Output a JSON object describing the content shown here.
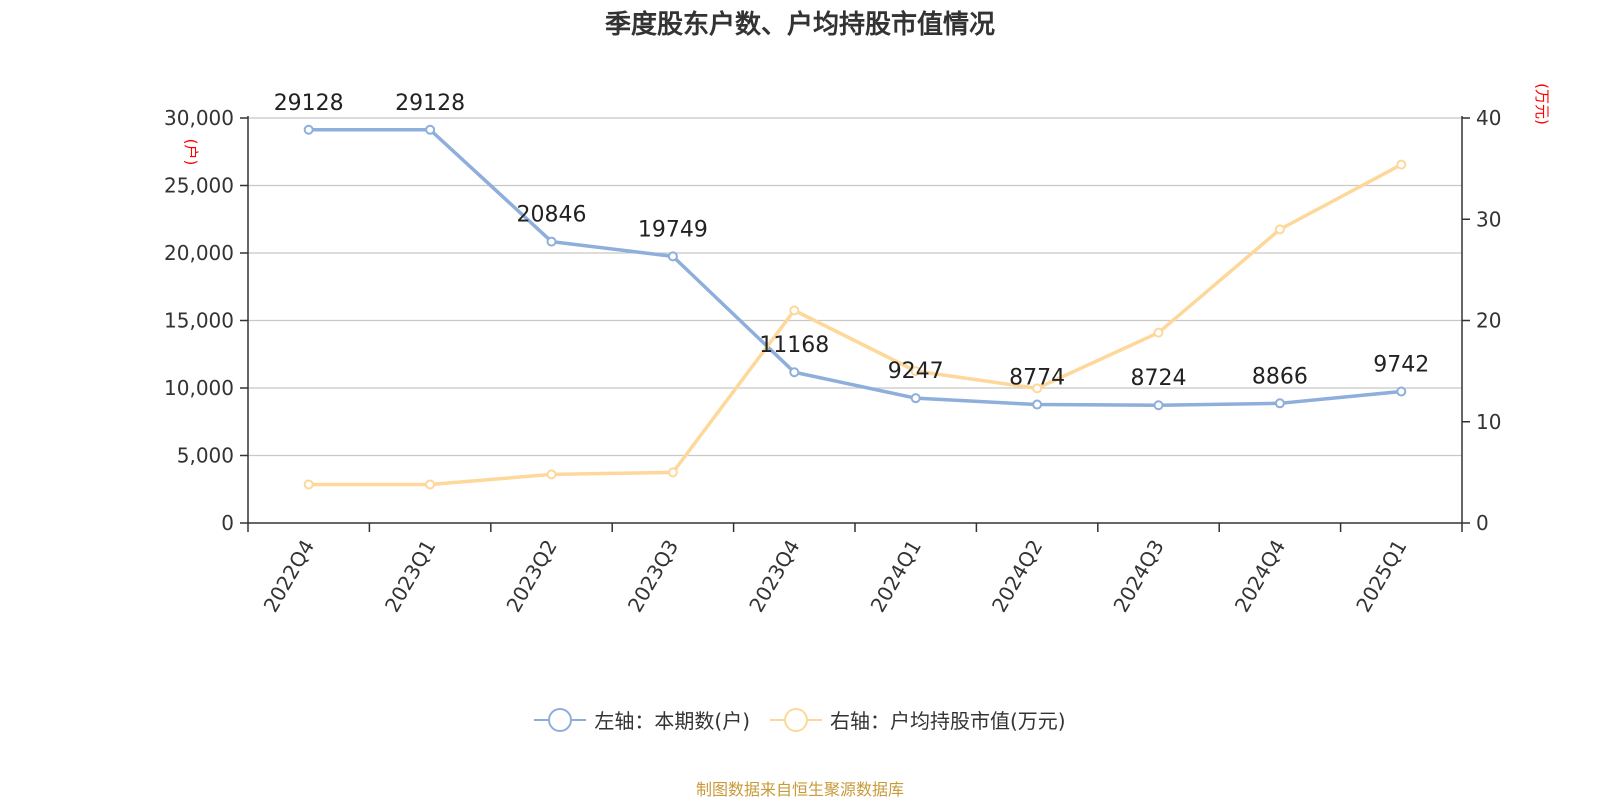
{
  "chart_data": {
    "type": "line",
    "title": "季度股东户数、户均持股市值情况",
    "categories": [
      "2022Q4",
      "2023Q1",
      "2023Q2",
      "2023Q3",
      "2023Q4",
      "2024Q1",
      "2024Q2",
      "2024Q3",
      "2024Q4",
      "2025Q1"
    ],
    "series": [
      {
        "name": "左轴：本期数(户)",
        "axis": "left",
        "color": "#8eaedb",
        "values": [
          29128,
          29128,
          20846,
          19749,
          11168,
          9247,
          8774,
          8724,
          8866,
          9742
        ],
        "labels": [
          "29128",
          "29128",
          "20846",
          "19749",
          "11168",
          "9247",
          "8774",
          "8724",
          "8866",
          "9742"
        ]
      },
      {
        "name": "右轴：户均持股市值(万元)",
        "axis": "right",
        "color": "#fdd89a",
        "values": [
          3.8,
          3.8,
          4.8,
          5.0,
          21.0,
          15.0,
          13.3,
          18.8,
          29.0,
          35.4
        ]
      }
    ],
    "y_left": {
      "label": "(户)",
      "lim": [
        0,
        30000
      ],
      "ticks": [
        "0",
        "5,000",
        "10,000",
        "15,000",
        "20,000",
        "25,000",
        "30,000"
      ]
    },
    "y_right": {
      "label": "(万元)",
      "lim": [
        0,
        40
      ],
      "ticks": [
        "0",
        "10",
        "20",
        "30",
        "40"
      ]
    },
    "grid": true,
    "legend_position": "bottom",
    "axis_label_color": "#ff0000"
  },
  "source": "制图数据来自恒生聚源数据库"
}
